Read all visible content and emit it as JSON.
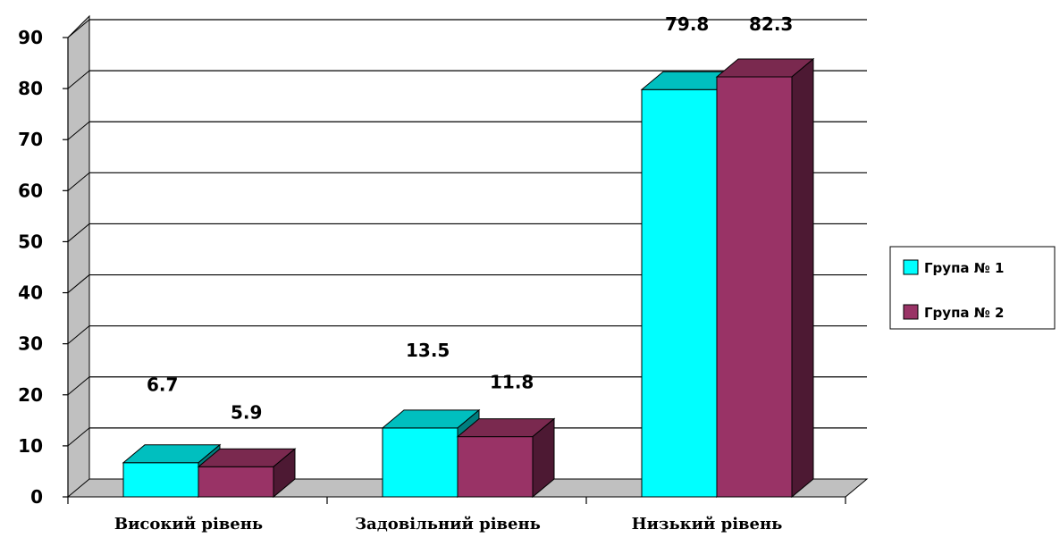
{
  "chart_data": {
    "type": "bar",
    "categories": [
      "Високий рівень",
      "Задовільний рівень",
      "Низький рівень"
    ],
    "series": [
      {
        "name": "Група № 1",
        "values": [
          6.7,
          13.5,
          79.8
        ],
        "color": "#00FFFF",
        "top_color": "#00BFBF",
        "side_color": "#007F7F"
      },
      {
        "name": "Група № 2",
        "values": [
          5.9,
          11.8,
          82.3
        ],
        "color": "#993366",
        "top_color": "#7A294F",
        "side_color": "#4D1933"
      }
    ],
    "y_ticks": [
      "0",
      "10",
      "20",
      "30",
      "40",
      "50",
      "60",
      "70",
      "80",
      "90"
    ],
    "ylim": [
      0,
      90
    ],
    "grid": true,
    "legend_position": "right",
    "title": "",
    "xlabel": "",
    "ylabel": ""
  }
}
